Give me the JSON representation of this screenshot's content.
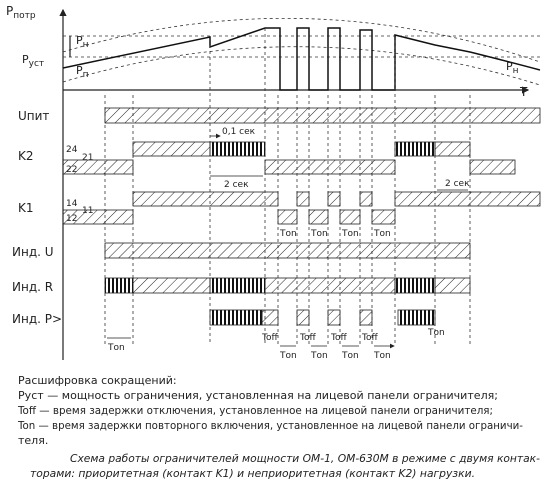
{
  "axis": {
    "p": {
      "main": "P",
      "sub": "потр"
    },
    "pn_left": {
      "main": "P",
      "sub": "н"
    },
    "pust": {
      "main": "P",
      "sub": "уст"
    },
    "pp": {
      "main": "P",
      "sub": "п"
    },
    "pn_right": {
      "main": "P",
      "sub": "н"
    },
    "t": "T"
  },
  "rows": [
    "Uпит",
    "K2",
    "K1",
    "Инд. U",
    "Инд. R",
    "Инд. P>"
  ],
  "contacts": [
    "24",
    "21",
    "22",
    "14",
    "11",
    "12"
  ],
  "timing": {
    "t01": "0,1 сек",
    "t2_left": "2 сек",
    "t2_right": "2 сек",
    "ton": [
      "Tоn",
      "Tоn",
      "Tоn",
      "Tоn",
      "Tоn",
      "Tоn",
      "Tоn",
      "Tоn",
      "Tоn",
      "Tоn"
    ],
    "toff": [
      "Toff",
      "Toff",
      "Toff",
      "Toff"
    ]
  },
  "legend": {
    "title": "Расшифровка сокращений:",
    "lines": [
      "Pуст — мощность ограничения, установленная на лицевой панели ограничителя;",
      "Toff — время задержки отключения, установленное на лицевой панели ограничителя;",
      "Ton — время задержки повторного включения, установленное на лицевой панели ограничи-",
      "теля."
    ]
  },
  "caption": [
    "Схема работы ограничителей мощности ОМ-1, ОМ-630М в режиме с двумя контак-",
    "торами: приоритетная (контакт K1) и неприоритетная (контакт K2) нагрузки."
  ]
}
